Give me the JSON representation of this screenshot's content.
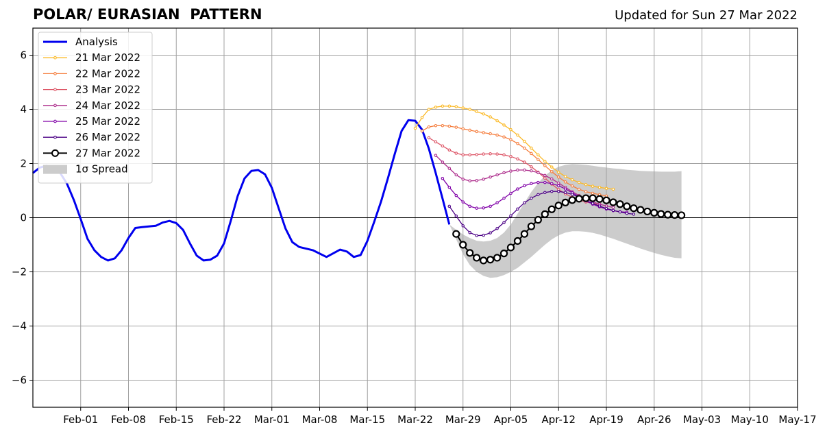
{
  "chart_data": {
    "type": "line",
    "title": "POLAR/ EURASIAN  PATTERN",
    "subtitle": "Updated for Sun 27 Mar 2022",
    "xlabel": "",
    "ylabel": "",
    "x_range": [
      "2022-01-25",
      "2022-05-17"
    ],
    "ylim": [
      -7,
      7
    ],
    "x_ticks": [
      {
        "date": "2022-02-01",
        "label": "Feb-01"
      },
      {
        "date": "2022-02-08",
        "label": "Feb-08"
      },
      {
        "date": "2022-02-15",
        "label": "Feb-15"
      },
      {
        "date": "2022-02-22",
        "label": "Feb-22"
      },
      {
        "date": "2022-03-01",
        "label": "Mar-01"
      },
      {
        "date": "2022-03-08",
        "label": "Mar-08"
      },
      {
        "date": "2022-03-15",
        "label": "Mar-15"
      },
      {
        "date": "2022-03-22",
        "label": "Mar-22"
      },
      {
        "date": "2022-03-29",
        "label": "Mar-29"
      },
      {
        "date": "2022-04-05",
        "label": "Apr-05"
      },
      {
        "date": "2022-04-12",
        "label": "Apr-12"
      },
      {
        "date": "2022-04-19",
        "label": "Apr-19"
      },
      {
        "date": "2022-04-26",
        "label": "Apr-26"
      },
      {
        "date": "2022-05-03",
        "label": "May-03"
      },
      {
        "date": "2022-05-10",
        "label": "May-10"
      },
      {
        "date": "2022-05-17",
        "label": "May-17"
      }
    ],
    "y_ticks": [
      {
        "value": 6,
        "label": "6"
      },
      {
        "value": 4,
        "label": "4"
      },
      {
        "value": 2,
        "label": "2"
      },
      {
        "value": 0,
        "label": "0"
      },
      {
        "value": -2,
        "label": "−2"
      },
      {
        "value": -4,
        "label": "−4"
      },
      {
        "value": -6,
        "label": "−6"
      }
    ],
    "grid": true,
    "legend_position": "top-left",
    "analysis": {
      "name": "Analysis",
      "color": "#0000ee",
      "x": [
        "2022-01-25",
        "2022-01-26",
        "2022-01-27",
        "2022-01-28",
        "2022-01-29",
        "2022-01-30",
        "2022-01-31",
        "2022-02-01",
        "2022-02-02",
        "2022-02-03",
        "2022-02-04",
        "2022-02-05",
        "2022-02-06",
        "2022-02-07",
        "2022-02-08",
        "2022-02-09",
        "2022-02-10",
        "2022-02-12",
        "2022-02-13",
        "2022-02-14",
        "2022-02-15",
        "2022-02-16",
        "2022-02-17",
        "2022-02-18",
        "2022-02-19",
        "2022-02-20",
        "2022-02-21",
        "2022-02-22",
        "2022-02-23",
        "2022-02-24",
        "2022-02-25",
        "2022-02-26",
        "2022-02-27",
        "2022-02-28",
        "2022-03-01",
        "2022-03-02",
        "2022-03-03",
        "2022-03-04",
        "2022-03-05",
        "2022-03-07",
        "2022-03-09",
        "2022-03-11",
        "2022-03-12",
        "2022-03-13",
        "2022-03-14",
        "2022-03-15",
        "2022-03-16",
        "2022-03-17",
        "2022-03-18",
        "2022-03-19",
        "2022-03-20",
        "2022-03-21",
        "2022-03-22",
        "2022-03-23",
        "2022-03-24",
        "2022-03-25",
        "2022-03-26",
        "2022-03-27"
      ],
      "y": [
        1.65,
        1.85,
        1.92,
        1.85,
        1.65,
        1.25,
        0.65,
        -0.05,
        -0.78,
        -1.2,
        -1.45,
        -1.58,
        -1.5,
        -1.2,
        -0.75,
        -0.38,
        -0.35,
        -0.3,
        -0.18,
        -0.12,
        -0.2,
        -0.45,
        -0.95,
        -1.4,
        -1.58,
        -1.55,
        -1.4,
        -0.95,
        -0.1,
        0.8,
        1.45,
        1.73,
        1.76,
        1.6,
        1.1,
        0.35,
        -0.4,
        -0.9,
        -1.08,
        -1.2,
        -1.45,
        -1.18,
        -1.25,
        -1.45,
        -1.38,
        -0.85,
        -0.15,
        0.6,
        1.45,
        2.35,
        3.2,
        3.6,
        3.58,
        3.25,
        2.55,
        1.65,
        0.7,
        -0.25
      ]
    },
    "forecasts": [
      {
        "name": "21 Mar 2022",
        "color": "#fbb926",
        "start": "2022-03-22",
        "values": [
          3.3,
          3.7,
          4.0,
          4.08,
          4.12,
          4.12,
          4.1,
          4.05,
          4.0,
          3.92,
          3.83,
          3.72,
          3.58,
          3.42,
          3.25,
          3.05,
          2.82,
          2.57,
          2.32,
          2.08,
          1.87,
          1.68,
          1.52,
          1.4,
          1.3,
          1.22,
          1.16,
          1.12,
          1.08,
          1.05
        ]
      },
      {
        "name": "22 Mar 2022",
        "color": "#f57d3d",
        "start": "2022-03-23",
        "values": [
          3.2,
          3.35,
          3.4,
          3.4,
          3.38,
          3.34,
          3.28,
          3.23,
          3.18,
          3.14,
          3.1,
          3.05,
          2.98,
          2.88,
          2.74,
          2.57,
          2.37,
          2.15,
          1.92,
          1.7,
          1.5,
          1.32,
          1.17,
          1.05,
          0.96,
          0.9,
          0.85,
          0.8
        ]
      },
      {
        "name": "23 Mar 2022",
        "color": "#dd5566",
        "start": "2022-03-24",
        "values": [
          2.95,
          2.8,
          2.65,
          2.5,
          2.38,
          2.32,
          2.32,
          2.33,
          2.35,
          2.36,
          2.35,
          2.32,
          2.26,
          2.17,
          2.05,
          1.88,
          1.68,
          1.46,
          1.24,
          1.04,
          0.88,
          0.75,
          0.65,
          0.58,
          0.53,
          0.5
        ]
      },
      {
        "name": "24 Mar 2022",
        "color": "#ad2d8c",
        "start": "2022-03-25",
        "values": [
          2.3,
          2.05,
          1.82,
          1.58,
          1.42,
          1.36,
          1.37,
          1.42,
          1.5,
          1.58,
          1.66,
          1.72,
          1.76,
          1.76,
          1.73,
          1.66,
          1.56,
          1.43,
          1.28,
          1.12,
          0.96,
          0.82,
          0.69,
          0.59,
          0.5,
          0.43,
          0.38
        ]
      },
      {
        "name": "25 Mar 2022",
        "color": "#8000a8",
        "start": "2022-03-26",
        "values": [
          1.45,
          1.12,
          0.82,
          0.58,
          0.42,
          0.35,
          0.36,
          0.42,
          0.55,
          0.72,
          0.9,
          1.06,
          1.18,
          1.26,
          1.3,
          1.3,
          1.26,
          1.18,
          1.06,
          0.92,
          0.77,
          0.62,
          0.5,
          0.4,
          0.32,
          0.26,
          0.22,
          0.2
        ]
      },
      {
        "name": "26 Mar 2022",
        "color": "#4b0086",
        "start": "2022-03-27",
        "values": [
          0.42,
          0.06,
          -0.3,
          -0.55,
          -0.66,
          -0.65,
          -0.56,
          -0.4,
          -0.18,
          0.07,
          0.32,
          0.55,
          0.72,
          0.85,
          0.93,
          0.97,
          0.97,
          0.93,
          0.86,
          0.76,
          0.64,
          0.53,
          0.43,
          0.34,
          0.27,
          0.21,
          0.16,
          0.13
        ]
      }
    ],
    "latest": {
      "name": "27 Mar 2022",
      "color": "#000000",
      "start": "2022-03-28",
      "values": [
        -0.6,
        -1.0,
        -1.3,
        -1.48,
        -1.58,
        -1.55,
        -1.48,
        -1.32,
        -1.1,
        -0.86,
        -0.6,
        -0.32,
        -0.08,
        0.13,
        0.31,
        0.45,
        0.56,
        0.65,
        0.7,
        0.72,
        0.72,
        0.69,
        0.64,
        0.57,
        0.5,
        0.42,
        0.35,
        0.29,
        0.23,
        0.18,
        0.14,
        0.11,
        0.1,
        0.09
      ]
    },
    "spread": {
      "name": "1σ Spread",
      "color": "#cccccc",
      "start": "2022-03-27",
      "upper": [
        -0.25,
        -0.45,
        -0.62,
        -0.75,
        -0.85,
        -0.88,
        -0.85,
        -0.75,
        -0.55,
        -0.25,
        0.15,
        0.55,
        0.95,
        1.28,
        1.55,
        1.75,
        1.88,
        1.95,
        1.98,
        1.97,
        1.95,
        1.92,
        1.88,
        1.85,
        1.82,
        1.8,
        1.77,
        1.75,
        1.73,
        1.72,
        1.71,
        1.7,
        1.7,
        1.7,
        1.72
      ],
      "lower": [
        -0.25,
        -0.8,
        -1.35,
        -1.75,
        -2.0,
        -2.15,
        -2.22,
        -2.2,
        -2.12,
        -2.0,
        -1.85,
        -1.65,
        -1.45,
        -1.22,
        -1.0,
        -0.8,
        -0.65,
        -0.55,
        -0.5,
        -0.5,
        -0.52,
        -0.56,
        -0.62,
        -0.7,
        -0.78,
        -0.87,
        -0.96,
        -1.05,
        -1.14,
        -1.22,
        -1.3,
        -1.37,
        -1.43,
        -1.48,
        -1.5
      ]
    }
  }
}
